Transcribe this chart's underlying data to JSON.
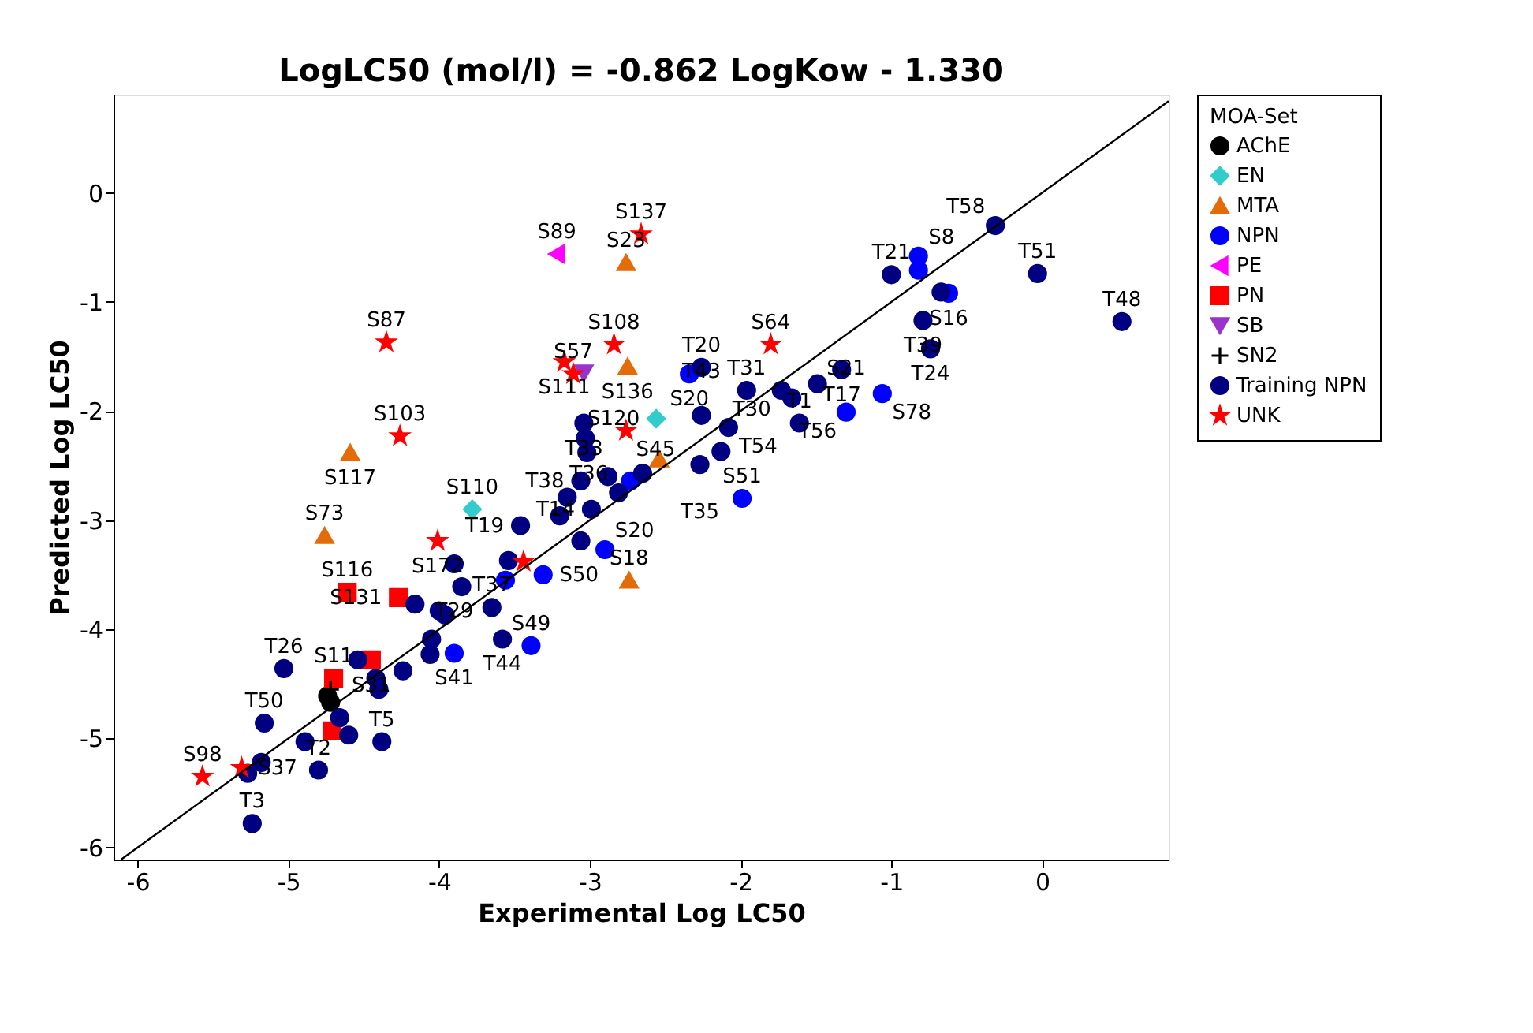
{
  "chart_data": {
    "type": "scatter",
    "title": "LogLC50 (mol/l) = -0.862 LogKow - 1.330",
    "xlabel": "Experimental Log LC50",
    "ylabel": "Predicted Log LC50",
    "legend_title": "MOA-Set",
    "xlim": [
      -6.16,
      0.84
    ],
    "ylim": [
      -6.11,
      0.9
    ],
    "xticks": [
      -6,
      -5,
      -4,
      -3,
      -2,
      -1,
      0
    ],
    "yticks": [
      -6,
      -5,
      -4,
      -3,
      -2,
      -1,
      0
    ],
    "grid": false,
    "legend": "right",
    "series": [
      {
        "name": "AChE",
        "color": "#000000",
        "marker": "circle",
        "x": [
          -4.74,
          -4.72
        ],
        "values": [
          -4.61,
          -4.67
        ]
      },
      {
        "name": "EN",
        "color": "#33cccc",
        "marker": "diamond",
        "x": [
          -3.78,
          -2.56
        ],
        "values": [
          -2.9,
          -2.07
        ]
      },
      {
        "name": "MTA",
        "color": "#e36c09",
        "marker": "triangle",
        "x": [
          -2.76,
          -2.75,
          -4.59,
          -4.76,
          -2.74,
          -2.54
        ],
        "values": [
          -0.64,
          -1.59,
          -2.38,
          -3.14,
          -3.55,
          -2.44
        ]
      },
      {
        "name": "NPN",
        "color": "#0000ff",
        "marker": "circle",
        "x": [
          -0.82,
          -0.82,
          -0.62,
          -1.06,
          -1.3,
          -1.99,
          -2.34,
          -2.9,
          -2.73,
          -3.39,
          -3.9,
          -3.31,
          -3.56
        ],
        "values": [
          -0.58,
          -0.71,
          -0.92,
          -1.84,
          -2.01,
          -2.8,
          -1.66,
          -3.27,
          -2.64,
          -4.15,
          -4.22,
          -3.5,
          -3.55
        ]
      },
      {
        "name": "PE",
        "color": "#ff00ff",
        "marker": "triangle-left",
        "x": [
          -3.22
        ],
        "values": [
          -0.56
        ]
      },
      {
        "name": "PN",
        "color": "#ff0000",
        "marker": "square",
        "x": [
          -4.61,
          -4.27,
          -4.45,
          -4.7,
          -4.71
        ],
        "values": [
          -3.66,
          -3.71,
          -4.28,
          -4.45,
          -4.93
        ]
      },
      {
        "name": "SB",
        "color": "#9933cc",
        "marker": "triangle-down",
        "x": [
          -3.04
        ],
        "values": [
          -1.65
        ]
      },
      {
        "name": "SN2",
        "color": "#000000",
        "marker": "cross",
        "x": [
          -4.72
        ],
        "values": [
          -4.55
        ]
      },
      {
        "name": "Training NPN",
        "color": "#000080",
        "marker": "circle",
        "x": [
          -0.31,
          -0.03,
          0.53,
          -1.0,
          -0.67,
          -0.79,
          -0.74,
          -1.33,
          -1.49,
          -1.73,
          -1.66,
          -1.61,
          -1.96,
          -2.26,
          -2.26,
          -2.08,
          -2.13,
          -2.27,
          -3.04,
          -3.03,
          -3.02,
          -2.88,
          -2.65,
          -3.06,
          -3.15,
          -2.81,
          -3.2,
          -2.99,
          -3.06,
          -3.46,
          -3.54,
          -3.9,
          -3.65,
          -3.58,
          -3.85,
          -4.0,
          -4.06,
          -5.03,
          -5.16,
          -5.18,
          -5.24,
          -4.89,
          -4.8,
          -4.38,
          -4.6,
          -4.4,
          -4.24,
          -4.54,
          -4.42,
          -4.16,
          -3.96,
          -4.05,
          -5.27,
          -4.66
        ],
        "values": [
          -0.3,
          -0.74,
          -1.18,
          -0.75,
          -0.91,
          -1.17,
          -1.43,
          -1.62,
          -1.75,
          -1.81,
          -1.88,
          -2.11,
          -1.81,
          -1.6,
          -2.04,
          -2.15,
          -2.37,
          -2.49,
          -2.11,
          -2.25,
          -2.38,
          -2.6,
          -2.57,
          -2.64,
          -2.79,
          -2.75,
          -2.96,
          -2.9,
          -3.19,
          -3.05,
          -3.37,
          -3.4,
          -3.8,
          -4.09,
          -3.61,
          -3.83,
          -4.23,
          -4.36,
          -4.86,
          -5.22,
          -5.78,
          -5.03,
          -5.29,
          -5.03,
          -4.97,
          -4.55,
          -4.38,
          -4.28,
          -4.45,
          -3.77,
          -3.87,
          -4.09,
          -5.32,
          -4.81
        ]
      },
      {
        "name": "UNK",
        "color": "#ff0000",
        "marker": "star",
        "x": [
          -2.66,
          -4.35,
          -4.26,
          -2.84,
          -1.8,
          -3.17,
          -3.11,
          -2.76,
          -4.01,
          -3.44,
          -5.57,
          -5.31
        ],
        "values": [
          -0.38,
          -1.37,
          -2.23,
          -1.39,
          -1.39,
          -1.55,
          -1.66,
          -2.18,
          -3.19,
          -3.38,
          -5.35,
          -5.27
        ]
      },
      {
        "type": "line",
        "color": "#000000",
        "line_style": "solid",
        "x": [
          -6.11,
          0.84
        ],
        "values": [
          -6.11,
          0.84
        ]
      }
    ],
    "annotations": [
      {
        "text": "T58",
        "x": -0.31,
        "y": -0.3
      },
      {
        "text": "T51",
        "x": -0.03,
        "y": -0.74
      },
      {
        "text": "T48",
        "x": 0.53,
        "y": -1.18
      },
      {
        "text": "T21",
        "x": -1.0,
        "y": -0.75
      },
      {
        "text": "S8",
        "x": -0.82,
        "y": -0.58
      },
      {
        "text": "S16",
        "x": -0.62,
        "y": -0.92
      },
      {
        "text": "T39",
        "x": -0.79,
        "y": -1.17
      },
      {
        "text": "T24",
        "x": -0.74,
        "y": -1.43
      },
      {
        "text": "T17",
        "x": -1.33,
        "y": -1.62
      },
      {
        "text": "T56",
        "x": -1.49,
        "y": -1.75
      },
      {
        "text": "S78",
        "x": -1.06,
        "y": -1.84
      },
      {
        "text": "S21",
        "x": -1.3,
        "y": -2.01
      },
      {
        "text": "T31",
        "x": -1.96,
        "y": -1.81
      },
      {
        "text": "T30",
        "x": -1.73,
        "y": -1.81
      },
      {
        "text": "T1",
        "x": -1.61,
        "y": -2.11
      },
      {
        "text": "S64",
        "x": -1.8,
        "y": -1.39
      },
      {
        "text": "S51",
        "x": -1.99,
        "y": -2.8
      },
      {
        "text": "T20",
        "x": -2.26,
        "y": -1.6
      },
      {
        "text": "S20",
        "x": -2.34,
        "y": -1.66
      },
      {
        "text": "T43",
        "x": -2.26,
        "y": -2.04
      },
      {
        "text": "T54",
        "x": -2.08,
        "y": -2.15
      },
      {
        "text": "T35",
        "x": -2.27,
        "y": -2.49
      },
      {
        "text": "S120",
        "x": -2.56,
        "y": -2.07
      },
      {
        "text": "S137",
        "x": -2.66,
        "y": -0.38
      },
      {
        "text": "S23",
        "x": -2.76,
        "y": -0.64
      },
      {
        "text": "S89",
        "x": -3.22,
        "y": -0.56
      },
      {
        "text": "S108",
        "x": -2.84,
        "y": -1.39
      },
      {
        "text": "S136",
        "x": -2.75,
        "y": -1.59
      },
      {
        "text": "S111",
        "x": -3.17,
        "y": -1.55
      },
      {
        "text": "S57",
        "x": -3.11,
        "y": -1.66
      },
      {
        "text": "S87",
        "x": -4.35,
        "y": -1.37
      },
      {
        "text": "S103",
        "x": -4.26,
        "y": -2.23
      },
      {
        "text": "S117",
        "x": -4.59,
        "y": -2.38
      },
      {
        "text": "S73",
        "x": -4.76,
        "y": -3.14
      },
      {
        "text": "S110",
        "x": -3.78,
        "y": -2.9
      },
      {
        "text": "T19",
        "x": -3.46,
        "y": -3.05
      },
      {
        "text": "S172",
        "x": -4.01,
        "y": -3.19
      },
      {
        "text": "T33",
        "x": -3.04,
        "y": -2.11
      },
      {
        "text": "T38",
        "x": -3.06,
        "y": -2.64
      },
      {
        "text": "T36",
        "x": -2.81,
        "y": -2.75
      },
      {
        "text": "T14",
        "x": -2.99,
        "y": -2.9
      },
      {
        "text": "S18",
        "x": -2.74,
        "y": -3.55
      },
      {
        "text": "S20",
        "x": -2.9,
        "y": -3.27
      },
      {
        "text": "S45",
        "x": -2.76,
        "y": -2.18
      },
      {
        "text": "S49",
        "x": -3.39,
        "y": -4.15
      },
      {
        "text": "S41",
        "x": -3.9,
        "y": -4.22
      },
      {
        "text": "T37",
        "x": -3.65,
        "y": -3.8
      },
      {
        "text": "T44",
        "x": -3.58,
        "y": -4.09
      },
      {
        "text": "S50",
        "x": -3.31,
        "y": -3.5
      },
      {
        "text": "T29",
        "x": -3.9,
        "y": -3.4
      },
      {
        "text": "S116",
        "x": -4.61,
        "y": -3.66
      },
      {
        "text": "S131",
        "x": -4.27,
        "y": -3.71
      },
      {
        "text": "T26",
        "x": -5.03,
        "y": -4.36
      },
      {
        "text": "T50",
        "x": -5.16,
        "y": -4.86
      },
      {
        "text": "T3",
        "x": -5.24,
        "y": -5.78
      },
      {
        "text": "S98",
        "x": -5.57,
        "y": -5.35
      },
      {
        "text": "S37",
        "x": -5.31,
        "y": -5.27
      },
      {
        "text": "T2",
        "x": -4.8,
        "y": -5.29
      },
      {
        "text": "T5",
        "x": -4.38,
        "y": -5.03
      },
      {
        "text": "S11",
        "x": -4.7,
        "y": -4.45
      },
      {
        "text": "S31",
        "x": -4.45,
        "y": -4.28
      }
    ]
  }
}
